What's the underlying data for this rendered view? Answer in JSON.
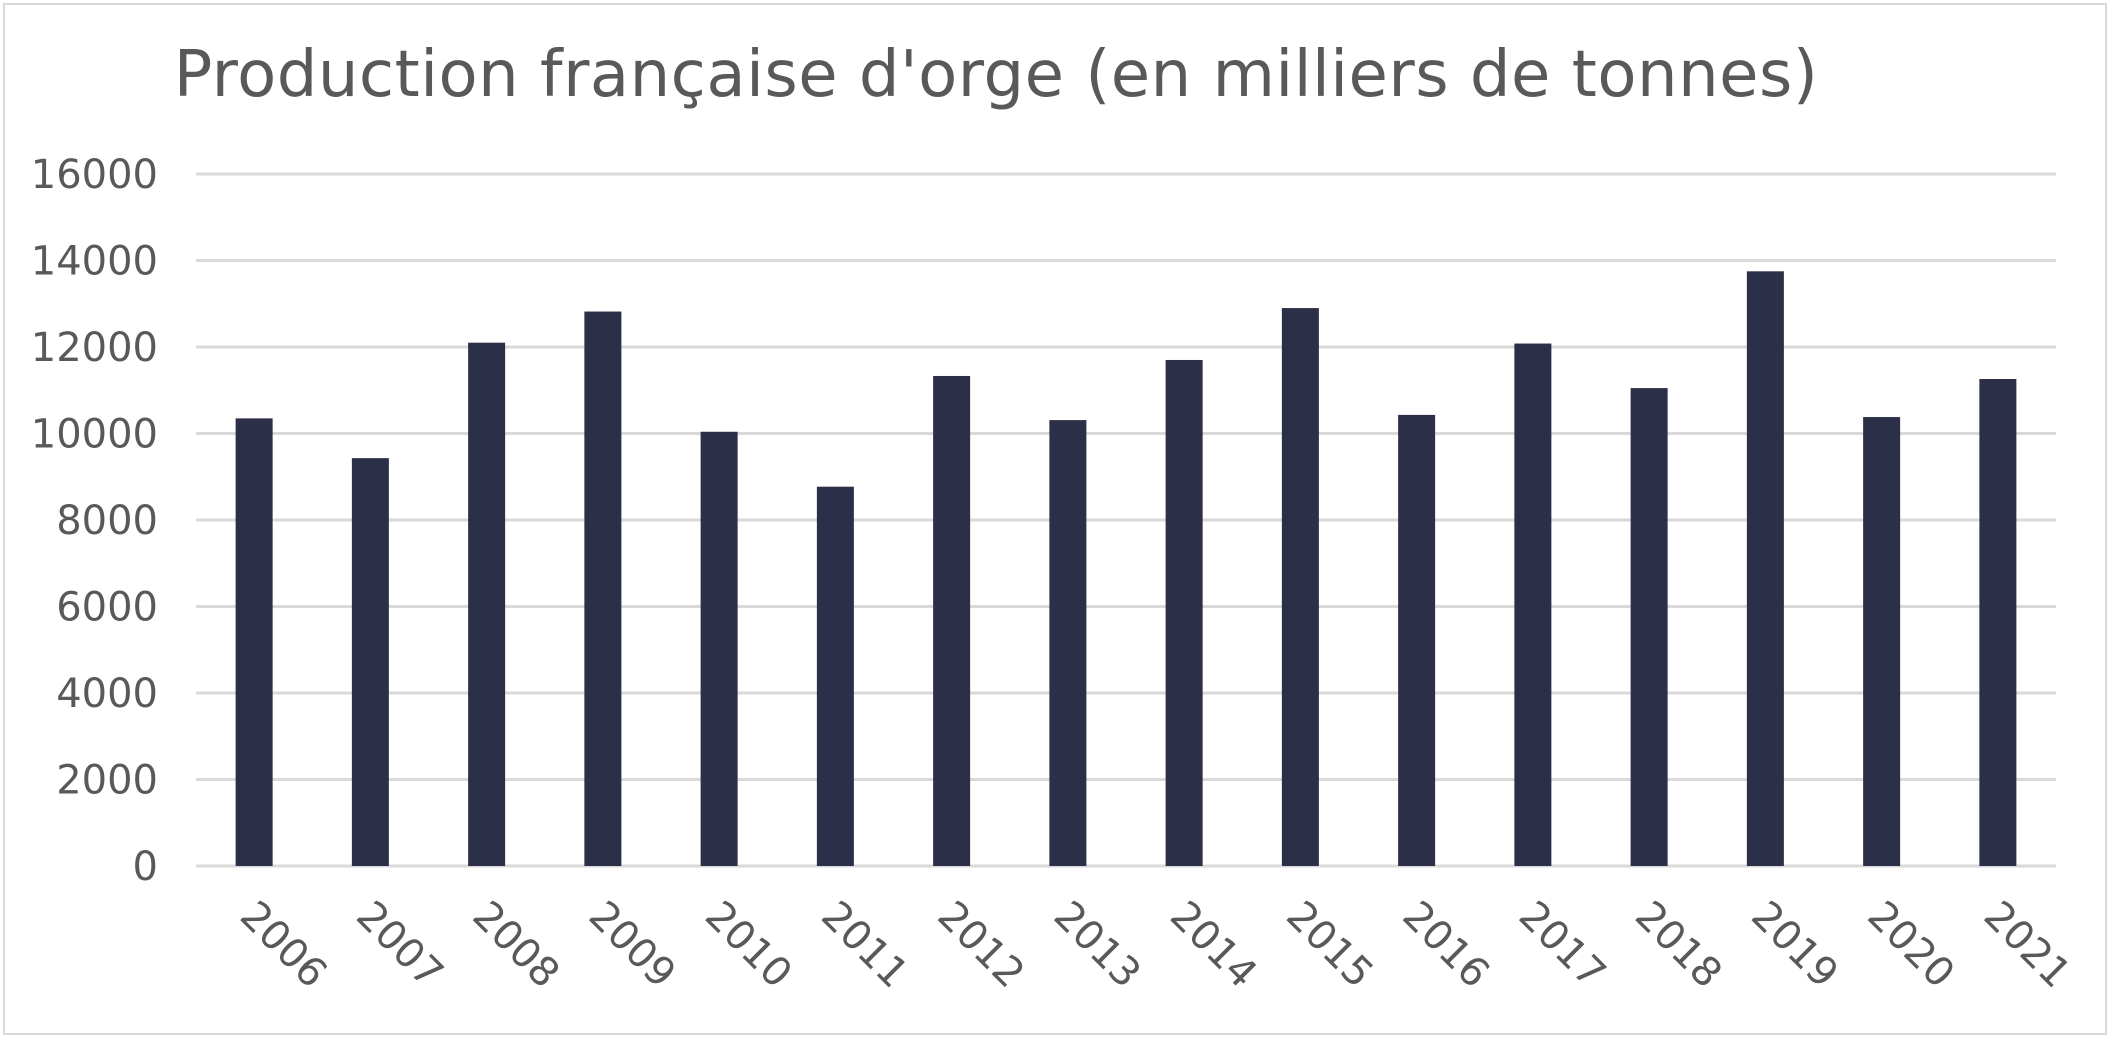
{
  "chart_data": {
    "type": "bar",
    "title": "Production française d'orge (en milliers de tonnes)",
    "xlabel": "",
    "ylabel": "",
    "categories": [
      "2006",
      "2007",
      "2008",
      "2009",
      "2010",
      "2011",
      "2012",
      "2013",
      "2014",
      "2015",
      "2016",
      "2017",
      "2018",
      "2019",
      "2020",
      "2021"
    ],
    "values": [
      10350,
      9430,
      12100,
      12820,
      10040,
      8770,
      11330,
      10310,
      11700,
      12900,
      10430,
      12080,
      11050,
      13750,
      10380,
      11260
    ],
    "ylim": [
      0,
      16000
    ],
    "yticks": [
      0,
      2000,
      4000,
      6000,
      8000,
      10000,
      12000,
      14000,
      16000
    ],
    "grid": true,
    "legend": "none",
    "bar_color": "#2b2f48",
    "grid_color": "#d9d9d9",
    "text_color": "#595959"
  }
}
